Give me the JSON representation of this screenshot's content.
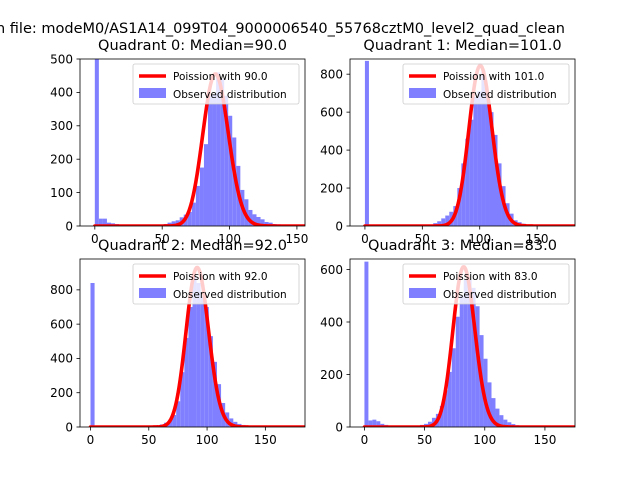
{
  "figure": {
    "suptitle": "n file: modeM0/AS1A14_099T04_9000006540_55768cztM0_level2_quad_clean"
  },
  "colors": {
    "hist": "#7f7fff",
    "poisson": "#ff0000",
    "axis": "#000000"
  },
  "chart_data": [
    {
      "type": "bar",
      "title": "Quadrant 0: Median=90.0",
      "legend": [
        "Poission with 90.0",
        "Observed distribution"
      ],
      "xlim": [
        -11,
        156
      ],
      "ylim": [
        0,
        500
      ],
      "xticks": [
        0,
        50,
        100,
        150
      ],
      "xtick_labels": [
        "0",
        "50",
        "100",
        "150"
      ],
      "yticks": [
        0,
        100,
        200,
        300,
        400,
        500
      ],
      "ytick_labels": [
        "0",
        "100",
        "200",
        "300",
        "400",
        "500"
      ],
      "bin_width": 3,
      "hist": [
        [
          0,
          500
        ],
        [
          3,
          22
        ],
        [
          6,
          22
        ],
        [
          9,
          10
        ],
        [
          12,
          8
        ],
        [
          15,
          6
        ],
        [
          18,
          3
        ],
        [
          21,
          2
        ],
        [
          24,
          2
        ],
        [
          27,
          2
        ],
        [
          30,
          1
        ],
        [
          33,
          1
        ],
        [
          36,
          1
        ],
        [
          39,
          1
        ],
        [
          42,
          1
        ],
        [
          45,
          1
        ],
        [
          48,
          2
        ],
        [
          51,
          6
        ],
        [
          54,
          10
        ],
        [
          57,
          14
        ],
        [
          60,
          17
        ],
        [
          63,
          26
        ],
        [
          66,
          34
        ],
        [
          69,
          42
        ],
        [
          72,
          70
        ],
        [
          75,
          120
        ],
        [
          78,
          175
        ],
        [
          81,
          245
        ],
        [
          84,
          390
        ],
        [
          87,
          395
        ],
        [
          90,
          460
        ],
        [
          93,
          440
        ],
        [
          96,
          390
        ],
        [
          99,
          330
        ],
        [
          102,
          265
        ],
        [
          105,
          180
        ],
        [
          108,
          108
        ],
        [
          111,
          80
        ],
        [
          114,
          48
        ],
        [
          117,
          35
        ],
        [
          120,
          27
        ],
        [
          123,
          20
        ],
        [
          126,
          12
        ],
        [
          129,
          10
        ],
        [
          132,
          6
        ],
        [
          135,
          5
        ],
        [
          138,
          3
        ],
        [
          141,
          2
        ],
        [
          144,
          2
        ],
        [
          147,
          1
        ],
        [
          150,
          1
        ]
      ],
      "poisson_mean": 90.0,
      "poisson_peak": 455
    },
    {
      "type": "bar",
      "title": "Quadrant 1: Median=101.0",
      "legend": [
        "Poission with 101.0",
        "Observed distribution"
      ],
      "xlim": [
        -13,
        183
      ],
      "ylim": [
        0,
        880
      ],
      "xticks": [
        0,
        50,
        100,
        150
      ],
      "xtick_labels": [
        "0",
        "50",
        "100",
        "150"
      ],
      "yticks": [
        0,
        200,
        400,
        600,
        800
      ],
      "ytick_labels": [
        "0",
        "200",
        "400",
        "600",
        "800"
      ],
      "bin_width": 3.5,
      "hist": [
        [
          0,
          870
        ],
        [
          3.5,
          6
        ],
        [
          7,
          4
        ],
        [
          10.5,
          3
        ],
        [
          14,
          2
        ],
        [
          17.5,
          2
        ],
        [
          21,
          1
        ],
        [
          24.5,
          1
        ],
        [
          28,
          1
        ],
        [
          31.5,
          1
        ],
        [
          35,
          1
        ],
        [
          38.5,
          1
        ],
        [
          42,
          1
        ],
        [
          45.5,
          1
        ],
        [
          49,
          2
        ],
        [
          52.5,
          3
        ],
        [
          56,
          8
        ],
        [
          59.5,
          15
        ],
        [
          63,
          25
        ],
        [
          66.5,
          40
        ],
        [
          70,
          55
        ],
        [
          73.5,
          75
        ],
        [
          77,
          105
        ],
        [
          80.5,
          200
        ],
        [
          84,
          330
        ],
        [
          87.5,
          460
        ],
        [
          91,
          560
        ],
        [
          94.5,
          680
        ],
        [
          98,
          710
        ],
        [
          101.5,
          820
        ],
        [
          105,
          690
        ],
        [
          108.5,
          600
        ],
        [
          112,
          480
        ],
        [
          115.5,
          330
        ],
        [
          119,
          210
        ],
        [
          122.5,
          120
        ],
        [
          126,
          65
        ],
        [
          129.5,
          30
        ],
        [
          133,
          20
        ],
        [
          136.5,
          12
        ],
        [
          140,
          7
        ],
        [
          143.5,
          4
        ],
        [
          147,
          3
        ],
        [
          150.5,
          2
        ],
        [
          154,
          1
        ],
        [
          157.5,
          1
        ],
        [
          161,
          1
        ],
        [
          164.5,
          1
        ],
        [
          168,
          1
        ]
      ],
      "poisson_mean": 101.0,
      "poisson_peak": 845
    },
    {
      "type": "bar",
      "title": "Quadrant 2: Median=92.0",
      "legend": [
        "Poission with 92.0",
        "Observed distribution"
      ],
      "xlim": [
        -9,
        184
      ],
      "ylim": [
        0,
        980
      ],
      "xticks": [
        0,
        50,
        100,
        150
      ],
      "xtick_labels": [
        "0",
        "50",
        "100",
        "150"
      ],
      "yticks": [
        0,
        200,
        400,
        600,
        800
      ],
      "ytick_labels": [
        "0",
        "200",
        "400",
        "600",
        "800"
      ],
      "bin_width": 3.5,
      "hist": [
        [
          0,
          840
        ],
        [
          3.5,
          3
        ],
        [
          7,
          2
        ],
        [
          10.5,
          2
        ],
        [
          14,
          1
        ],
        [
          17.5,
          1
        ],
        [
          21,
          1
        ],
        [
          24.5,
          1
        ],
        [
          28,
          1
        ],
        [
          31.5,
          1
        ],
        [
          35,
          1
        ],
        [
          38.5,
          1
        ],
        [
          42,
          1
        ],
        [
          45.5,
          1
        ],
        [
          49,
          2
        ],
        [
          52.5,
          5
        ],
        [
          56,
          10
        ],
        [
          59.5,
          15
        ],
        [
          63,
          25
        ],
        [
          66.5,
          40
        ],
        [
          70,
          70
        ],
        [
          73.5,
          150
        ],
        [
          77,
          320
        ],
        [
          80.5,
          520
        ],
        [
          84,
          700
        ],
        [
          87.5,
          880
        ],
        [
          91,
          840
        ],
        [
          94.5,
          760
        ],
        [
          98,
          700
        ],
        [
          101.5,
          530
        ],
        [
          105,
          380
        ],
        [
          108.5,
          250
        ],
        [
          112,
          140
        ],
        [
          115.5,
          85
        ],
        [
          119,
          50
        ],
        [
          122.5,
          30
        ],
        [
          126,
          18
        ],
        [
          129.5,
          12
        ],
        [
          133,
          8
        ],
        [
          136.5,
          5
        ],
        [
          140,
          3
        ],
        [
          143.5,
          2
        ],
        [
          147,
          2
        ],
        [
          150.5,
          1
        ],
        [
          154,
          1
        ],
        [
          157.5,
          1
        ],
        [
          161,
          1
        ],
        [
          164.5,
          1
        ],
        [
          168,
          1
        ]
      ],
      "poisson_mean": 92.0,
      "poisson_peak": 930
    },
    {
      "type": "bar",
      "title": "Quadrant 3: Median=83.0",
      "legend": [
        "Poission with 83.0",
        "Observed distribution"
      ],
      "xlim": [
        -12,
        175
      ],
      "ylim": [
        0,
        640
      ],
      "xticks": [
        0,
        50,
        100,
        150
      ],
      "xtick_labels": [
        "0",
        "50",
        "100",
        "150"
      ],
      "yticks": [
        0,
        200,
        400,
        600
      ],
      "ytick_labels": [
        "0",
        "200",
        "400",
        "600"
      ],
      "bin_width": 3.3,
      "hist": [
        [
          0,
          630
        ],
        [
          3.3,
          25
        ],
        [
          6.6,
          28
        ],
        [
          9.9,
          22
        ],
        [
          13.2,
          12
        ],
        [
          16.5,
          8
        ],
        [
          19.8,
          5
        ],
        [
          23.1,
          3
        ],
        [
          26.4,
          2
        ],
        [
          29.7,
          2
        ],
        [
          33,
          2
        ],
        [
          36.3,
          2
        ],
        [
          39.6,
          3
        ],
        [
          42.9,
          5
        ],
        [
          46.2,
          8
        ],
        [
          49.5,
          12
        ],
        [
          52.8,
          20
        ],
        [
          56.1,
          35
        ],
        [
          59.4,
          50
        ],
        [
          62.7,
          80
        ],
        [
          66,
          140
        ],
        [
          69.3,
          210
        ],
        [
          72.6,
          300
        ],
        [
          75.9,
          420
        ],
        [
          79.2,
          500
        ],
        [
          82.5,
          560
        ],
        [
          85.8,
          560
        ],
        [
          89.1,
          530
        ],
        [
          92.4,
          460
        ],
        [
          95.7,
          350
        ],
        [
          99,
          260
        ],
        [
          102.3,
          170
        ],
        [
          105.6,
          110
        ],
        [
          108.9,
          70
        ],
        [
          112.2,
          45
        ],
        [
          115.5,
          28
        ],
        [
          118.8,
          18
        ],
        [
          122.1,
          11
        ],
        [
          125.4,
          7
        ],
        [
          128.7,
          5
        ],
        [
          132,
          3
        ],
        [
          135.3,
          2
        ],
        [
          138.6,
          2
        ],
        [
          141.9,
          1
        ],
        [
          145.2,
          1
        ],
        [
          148.5,
          1
        ],
        [
          151.8,
          1
        ],
        [
          155.1,
          1
        ],
        [
          158.4,
          1
        ]
      ],
      "poisson_mean": 83.0,
      "poisson_peak": 610
    }
  ]
}
